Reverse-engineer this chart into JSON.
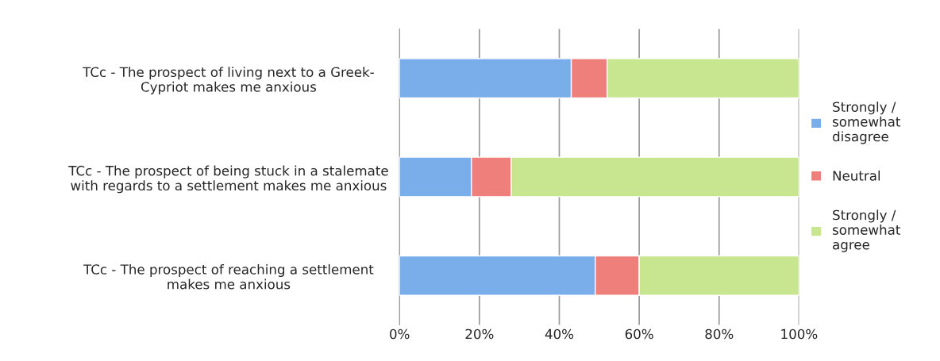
{
  "chart_data": {
    "type": "bar",
    "orientation": "horizontal",
    "stacked": true,
    "categories": [
      "TCc - The prospect of living next to a Greek-\nCypriot makes me anxious",
      "TCc - The prospect of being stuck in a stalemate\nwith regards to a settlement makes me anxious",
      "TCc - The prospect of reaching a settlement\nmakes me anxious"
    ],
    "series": [
      {
        "name": "Strongly /\nsomewhat\ndisagree",
        "color": "#7aaeeb",
        "values": [
          43,
          18,
          49
        ]
      },
      {
        "name": "Neutral",
        "color": "#ee7f7a",
        "values": [
          9,
          10,
          11
        ]
      },
      {
        "name": "Strongly /\nsomewhat\nagree",
        "color": "#c8e590",
        "values": [
          48,
          72,
          40
        ]
      }
    ],
    "xlim": [
      0,
      100
    ],
    "xticks": [
      {
        "value": 0,
        "label": "0%"
      },
      {
        "value": 20,
        "label": "20%"
      },
      {
        "value": 40,
        "label": "40%"
      },
      {
        "value": 60,
        "label": "60%"
      },
      {
        "value": 80,
        "label": "80%"
      },
      {
        "value": 100,
        "label": "100%"
      }
    ],
    "grid": "x",
    "legend": "right"
  }
}
